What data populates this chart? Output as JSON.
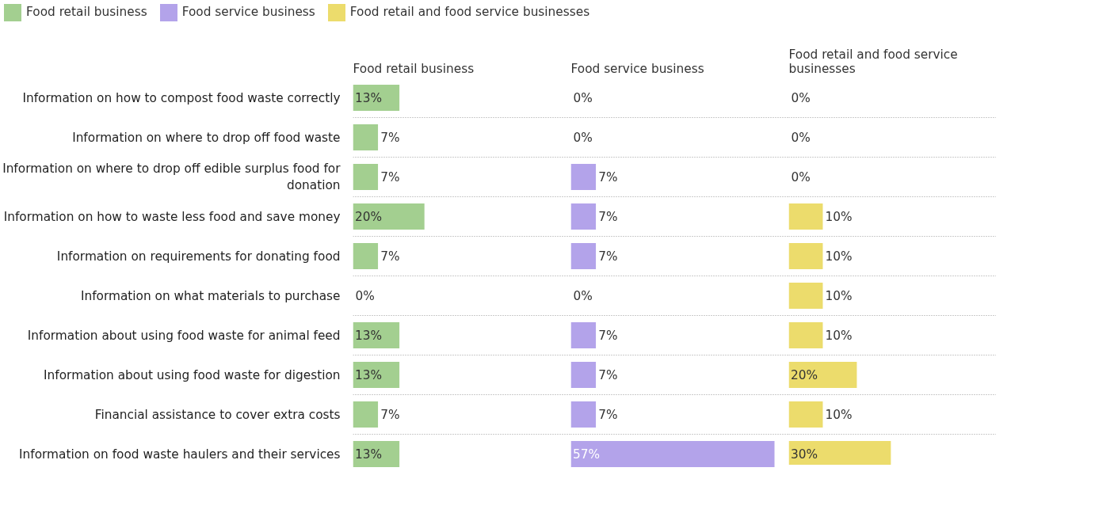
{
  "chart_data": [
    {
      "type": "bar",
      "orientation": "horizontal",
      "title": "Food retail business",
      "legend": "top",
      "tick_labels": "y",
      "grid": "y",
      "categories": [
        "Information on how to compost food waste correctly",
        "Information on where to drop off food waste",
        "Information on where to drop off edible surplus food for donation",
        "Information on how to waste less food and save money",
        "Information on requirements for donating food",
        "Information on what materials to purchase",
        "Information about using food waste for animal feed",
        "Information about using food waste for digestion",
        "Financial assistance to cover extra costs",
        "Information on food waste haulers and their services"
      ],
      "series": [
        {
          "name": "Food retail business",
          "color": "#a3cf90",
          "values": [
            13,
            7,
            7,
            20,
            7,
            0,
            13,
            13,
            7,
            13
          ],
          "value_labels": [
            "13%",
            "7%",
            "7%",
            "20%",
            "7%",
            "0%",
            "13%",
            "13%",
            "7%",
            "13%"
          ]
        }
      ]
    },
    {
      "type": "bar",
      "orientation": "horizontal",
      "title": "Food service business",
      "legend": "top",
      "tick_labels": false,
      "grid": "y",
      "categories": [
        "Information on how to compost food waste correctly",
        "Information on where to drop off food waste",
        "Information on where to drop off edible surplus food for donation",
        "Information on how to waste less food and save money",
        "Information on requirements for donating food",
        "Information on what materials to purchase",
        "Information about using food waste for animal feed",
        "Information about using food waste for digestion",
        "Financial assistance to cover extra costs",
        "Information on food waste haulers and their services"
      ],
      "series": [
        {
          "name": "Food service business",
          "color": "#b3a3ea",
          "values": [
            0,
            0,
            7,
            7,
            7,
            0,
            7,
            7,
            7,
            57
          ],
          "value_labels": [
            "0%",
            "0%",
            "7%",
            "7%",
            "7%",
            "0%",
            "7%",
            "7%",
            "7%",
            "57%"
          ]
        }
      ]
    },
    {
      "type": "bar",
      "orientation": "horizontal",
      "title": "Food retail and food service businesses",
      "legend": "top",
      "tick_labels": false,
      "grid": "y",
      "categories": [
        "Information on how to compost food waste correctly",
        "Information on where to drop off food waste",
        "Information on where to drop off edible surplus food for donation",
        "Information on how to waste less food and save money",
        "Information on requirements for donating food",
        "Information on what materials to purchase",
        "Information about using food waste for animal feed",
        "Information about using food waste for digestion",
        "Financial assistance to cover extra costs",
        "Information on food waste haulers and their services"
      ],
      "series": [
        {
          "name": "Food retail and food service businesses",
          "color": "#ecdc6c",
          "values": [
            0,
            0,
            0,
            10,
            10,
            10,
            10,
            20,
            10,
            30
          ],
          "value_labels": [
            "0%",
            "0%",
            "0%",
            "10%",
            "10%",
            "10%",
            "10%",
            "20%",
            "10%",
            "30%"
          ]
        }
      ]
    }
  ]
}
